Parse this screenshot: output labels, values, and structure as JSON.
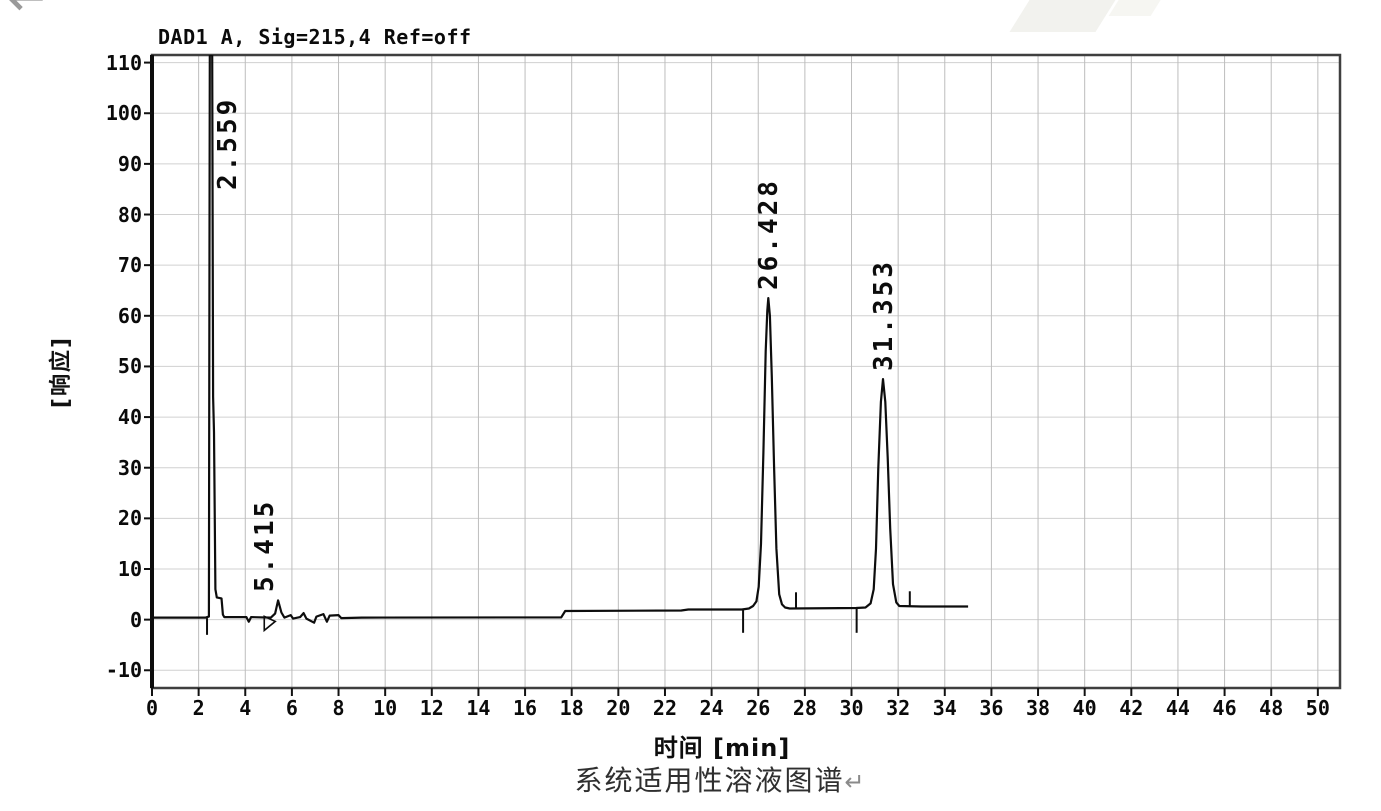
{
  "page": {
    "top_left_return_mark": "↵",
    "caption": "系统适用性溶液图谱",
    "caption_return_mark": "↵"
  },
  "chart_data": {
    "type": "line",
    "title": "DAD1 A, Sig=215,4 Ref=off",
    "xlabel": "时间 [min]",
    "ylabel": "[响应]",
    "xlim": [
      0,
      50.95
    ],
    "ylim": [
      -13.5,
      111.5
    ],
    "x_ticks": [
      0,
      2,
      4,
      6,
      8,
      10,
      12,
      14,
      16,
      18,
      20,
      22,
      24,
      26,
      28,
      30,
      32,
      34,
      36,
      38,
      40,
      42,
      44,
      46,
      48,
      50
    ],
    "y_ticks": [
      -10,
      0,
      10,
      20,
      30,
      40,
      50,
      60,
      70,
      80,
      90,
      100,
      110
    ],
    "grid": true,
    "legend": "none",
    "colors": {
      "trace": "#0d0d0d",
      "grid_h": "#d0d0d0",
      "grid_v": "#bdbdbd",
      "frame": "#3f3f3f",
      "axis": "#0d0d0d"
    },
    "peaks": [
      {
        "label": "2.559",
        "rt": 2.559,
        "apex": 111.5,
        "clipped": true,
        "label_side": "right"
      },
      {
        "label": "5.415",
        "rt": 5.415,
        "apex": 3.8,
        "pointer": true,
        "label_side": "left"
      },
      {
        "label": "26.428",
        "rt": 26.428,
        "apex": 63.5,
        "label_side": "center"
      },
      {
        "label": "31.353",
        "rt": 31.353,
        "apex": 47.5,
        "label_side": "center"
      }
    ],
    "integration_marks": [
      {
        "x": 2.36,
        "y1": 0.3,
        "y2": -3.0
      },
      {
        "x": 25.35,
        "y1": 2.0,
        "y2": -2.6
      },
      {
        "x": 27.62,
        "y1": 2.2,
        "y2": 5.4
      },
      {
        "x": 30.22,
        "y1": 2.3,
        "y2": -2.6
      },
      {
        "x": 32.5,
        "y1": 2.6,
        "y2": 5.6
      }
    ],
    "trace": [
      [
        0,
        0.4
      ],
      [
        2.3,
        0.4
      ],
      [
        2.44,
        0.6
      ],
      [
        2.48,
        111.5
      ],
      [
        2.58,
        111.5
      ],
      [
        2.62,
        44
      ],
      [
        2.66,
        37
      ],
      [
        2.72,
        6
      ],
      [
        2.78,
        4.4
      ],
      [
        2.98,
        4.2
      ],
      [
        3.04,
        1.0
      ],
      [
        3.1,
        0.5
      ],
      [
        4.05,
        0.5
      ],
      [
        4.15,
        -0.4
      ],
      [
        4.25,
        0.5
      ],
      [
        5.1,
        0.4
      ],
      [
        5.28,
        1.2
      ],
      [
        5.41,
        3.8
      ],
      [
        5.55,
        1.4
      ],
      [
        5.68,
        0.4
      ],
      [
        5.95,
        0.9
      ],
      [
        6.05,
        0.2
      ],
      [
        6.35,
        0.5
      ],
      [
        6.5,
        1.3
      ],
      [
        6.62,
        0.2
      ],
      [
        6.95,
        -0.6
      ],
      [
        7.05,
        0.6
      ],
      [
        7.35,
        1.1
      ],
      [
        7.5,
        -0.4
      ],
      [
        7.62,
        0.8
      ],
      [
        8.0,
        0.9
      ],
      [
        8.12,
        0.3
      ],
      [
        9.0,
        0.4
      ],
      [
        17.55,
        0.45
      ],
      [
        17.72,
        1.7
      ],
      [
        22.7,
        1.8
      ],
      [
        23.0,
        2.0
      ],
      [
        25.3,
        2.0
      ],
      [
        25.6,
        2.2
      ],
      [
        25.78,
        2.7
      ],
      [
        25.92,
        3.6
      ],
      [
        26.02,
        6.5
      ],
      [
        26.12,
        15
      ],
      [
        26.22,
        33
      ],
      [
        26.32,
        53
      ],
      [
        26.39,
        61
      ],
      [
        26.43,
        63.5
      ],
      [
        26.5,
        60
      ],
      [
        26.58,
        48
      ],
      [
        26.68,
        30
      ],
      [
        26.78,
        14
      ],
      [
        26.9,
        5
      ],
      [
        27.02,
        3
      ],
      [
        27.15,
        2.4
      ],
      [
        27.35,
        2.2
      ],
      [
        30.2,
        2.3
      ],
      [
        30.6,
        2.4
      ],
      [
        30.82,
        3.2
      ],
      [
        30.95,
        6
      ],
      [
        31.05,
        14
      ],
      [
        31.15,
        30
      ],
      [
        31.26,
        43
      ],
      [
        31.35,
        47.5
      ],
      [
        31.45,
        43
      ],
      [
        31.55,
        32
      ],
      [
        31.66,
        18
      ],
      [
        31.78,
        7
      ],
      [
        31.92,
        3.4
      ],
      [
        32.05,
        2.7
      ],
      [
        33.0,
        2.6
      ],
      [
        35.0,
        2.6
      ]
    ]
  }
}
